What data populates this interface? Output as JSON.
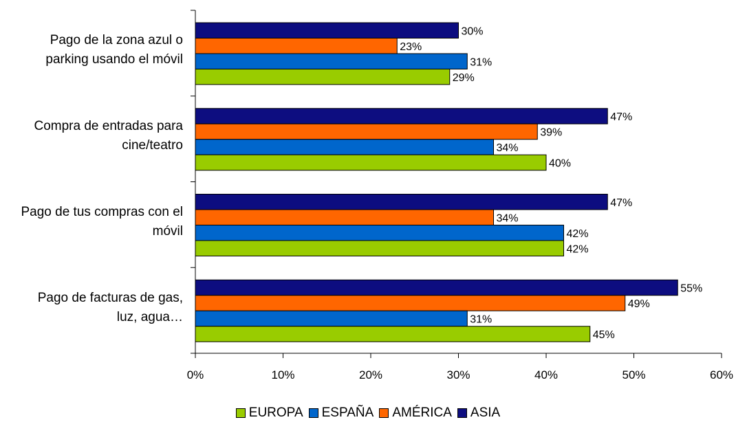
{
  "chart_data": {
    "type": "bar",
    "orientation": "horizontal",
    "categories": [
      "Pago de la zona azul o parking usando el móvil",
      "Compra de entradas para cine/teatro",
      "Pago de tus compras con el móvil",
      "Pago de facturas de gas, luz, agua…"
    ],
    "category_lines": [
      [
        "Pago de la zona azul o",
        "parking usando el móvil"
      ],
      [
        "Compra de entradas para",
        "cine/teatro"
      ],
      [
        "Pago de tus compras con el",
        "móvil"
      ],
      [
        "Pago de facturas de gas,",
        "luz, agua…"
      ]
    ],
    "series": [
      {
        "name": "ASIA",
        "color": "#0d0d80",
        "values": [
          30,
          47,
          47,
          55
        ]
      },
      {
        "name": "AMÉRICA",
        "color": "#ff6600",
        "values": [
          23,
          39,
          34,
          49
        ]
      },
      {
        "name": "ESPAÑA",
        "color": "#0066cc",
        "values": [
          31,
          34,
          42,
          31
        ]
      },
      {
        "name": "EUROPA",
        "color": "#99cc00",
        "values": [
          29,
          40,
          42,
          45
        ]
      }
    ],
    "legend_order": [
      "EUROPA",
      "ESPAÑA",
      "AMÉRICA",
      "ASIA"
    ],
    "value_suffix": "%",
    "xlim": [
      0,
      60
    ],
    "xticks": [
      0,
      10,
      20,
      30,
      40,
      50,
      60
    ],
    "xtick_labels": [
      "0%",
      "10%",
      "20%",
      "30%",
      "40%",
      "50%",
      "60%"
    ],
    "grid": false,
    "legend_position": "bottom"
  }
}
